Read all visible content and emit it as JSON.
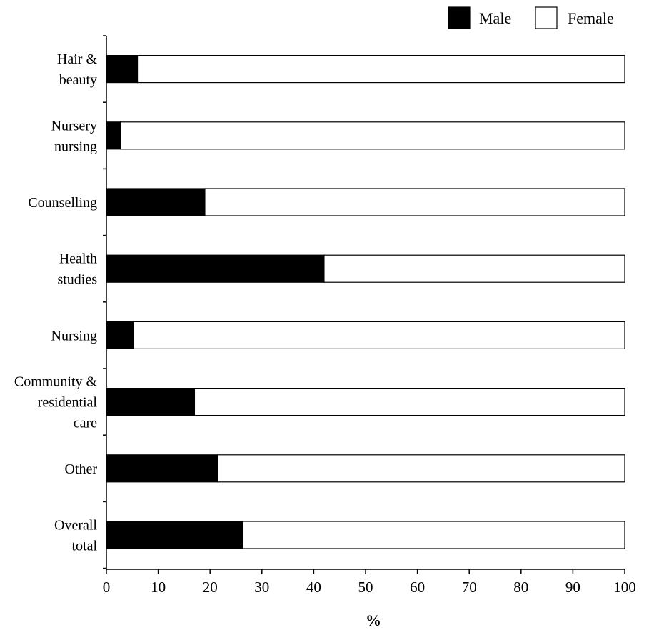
{
  "chart_data": {
    "type": "bar",
    "orientation": "horizontal",
    "stacked": true,
    "categories": [
      [
        "Hair &",
        "beauty"
      ],
      [
        "Nursery",
        "nursing"
      ],
      [
        "Counselling"
      ],
      [
        "Health",
        "studies"
      ],
      [
        "Nursing"
      ],
      [
        "Community &",
        "residential",
        "care"
      ],
      [
        "Other"
      ],
      [
        "Overall",
        "total"
      ]
    ],
    "series": [
      {
        "name": "Male",
        "color": "#000000",
        "values": [
          6,
          2.7,
          19,
          42,
          5.2,
          17,
          21.5,
          26.3
        ]
      },
      {
        "name": "Female",
        "color": "#ffffff",
        "values": [
          94,
          97.3,
          81,
          58,
          94.8,
          83,
          78.5,
          73.7
        ]
      }
    ],
    "xlabel": "%",
    "xlim": [
      0,
      100
    ],
    "xticks": [
      "0",
      "10",
      "20",
      "30",
      "40",
      "50",
      "60",
      "70",
      "80",
      "90",
      "100"
    ],
    "legend_position": "top-right",
    "grid": false
  }
}
